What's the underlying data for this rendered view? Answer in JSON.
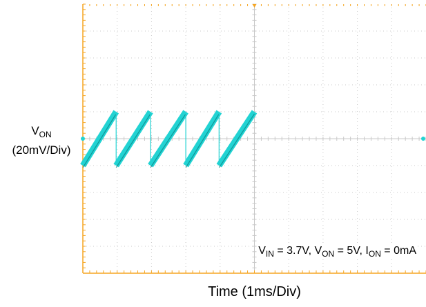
{
  "chart_data": {
    "type": "line",
    "title": "",
    "ylabel_main": "V",
    "ylabel_sub": "ON",
    "ylabel_scale": "(20mV/Div)",
    "xlabel": "Time (1ms/Div)",
    "x_divisions": 10,
    "y_divisions": 10,
    "grid": true,
    "trace_color": "#22d3d3",
    "trace_dark_color": "#0a7f7f",
    "grid_color": "#c8c8c8",
    "frame_color": "#f5a623",
    "series": [
      {
        "x": [
          0.0,
          0.97,
          0.97,
          1.97,
          1.97,
          3.0,
          3.0,
          3.97,
          3.97,
          5.0
        ],
        "y": [
          -20,
          20,
          -20,
          20,
          -20,
          20,
          -20,
          20,
          -20,
          20
        ]
      }
    ],
    "annotation": {
      "v_in_main": "V",
      "v_in_sub": "IN",
      "v_in_val": " = 3.7V, ",
      "v_on_main": "V",
      "v_on_sub": "ON",
      "v_on_val": " = 5V, ",
      "i_on_main": "I",
      "i_on_sub": "ON",
      "i_on_val": " = 0mA"
    }
  }
}
